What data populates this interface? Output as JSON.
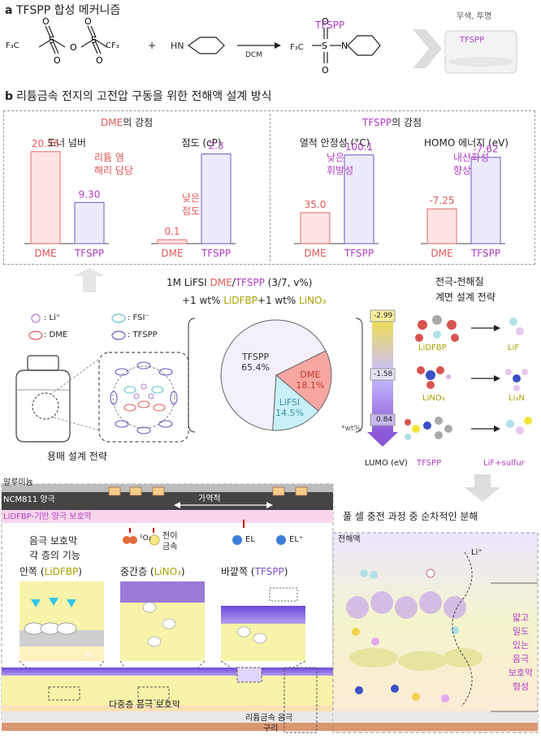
{
  "section_a": {
    "letter": "a",
    "title": "TFSPP 합성 메커니즘",
    "reactant1_F3C_left": "F₃C",
    "reactant1_CF3_right": "CF₃",
    "plus": "+",
    "amine": "HN",
    "solvent": "DCM",
    "product_label": "TFSPP",
    "product_F3C": "F₃C",
    "appearance": "무색, 투명",
    "vial_label": "TFSPP"
  },
  "section_b": {
    "letter": "b",
    "title": "리튬금속 전지의 고전압 구동을 위한 전해액 설계 방식",
    "dme_strength_title_a": "DME",
    "dme_strength_title_b": "의 강점",
    "tfspp_strength_title_a": "TFSPP",
    "tfspp_strength_title_b": "의 강점",
    "legend": {
      "li": ": Li⁺",
      "fsi": ": FSI⁻",
      "dme": ": DME",
      "tfspp": ": TFSPP"
    },
    "solvent_strategy": "용매 설계 전략",
    "formula_line1_a": "1M LiFSI ",
    "formula_line1_b": "DME",
    "formula_line1_c": "/",
    "formula_line1_d": "TFSPP",
    "formula_line1_e": " (3/7, v%)",
    "formula_line2_a": "+1 wt% ",
    "formula_line2_b": "LiDFBP",
    "formula_line2_c": "+1 wt% ",
    "formula_line2_d": "LiNO₃",
    "interface_title1": "전극-전해질",
    "interface_title2": "계면 설계 전략",
    "lumo_label": "LUMO (eV)",
    "lumo_values": [
      "-2.99",
      "-1.58",
      "0.84"
    ],
    "species": {
      "lidfbp": "LiDFBP",
      "lif": "LiF",
      "lino3": "LiNO₃",
      "li3n": "Li₃N",
      "tfspp": "TFSPP",
      "lif_sulfur": "LiF+sulfur"
    }
  },
  "chart_data": [
    {
      "type": "bar",
      "title": "도너 넘버",
      "categories": [
        "DME",
        "TFSPP"
      ],
      "values": [
        20.76,
        9.3
      ],
      "value_labels": [
        "20.76",
        "9.30"
      ],
      "annotation": [
        "리튬 염",
        "해리 담당"
      ],
      "ylim": [
        0,
        22
      ]
    },
    {
      "type": "bar",
      "title": "점도 (cP)",
      "categories": [
        "DME",
        "TFSPP"
      ],
      "values": [
        0.1,
        2.3
      ],
      "value_labels": [
        "0.1",
        "2.3"
      ],
      "annotation": [
        "낮은",
        "점도"
      ],
      "ylim": [
        0,
        2.5
      ]
    },
    {
      "type": "bar",
      "title": "열적 안정성 (°C)",
      "categories": [
        "DME",
        "TFSPP"
      ],
      "values": [
        35.0,
        100.1
      ],
      "value_labels": [
        "35.0",
        "100.1"
      ],
      "annotation": [
        "낮은",
        "휘발성"
      ],
      "ylim": [
        0,
        110
      ]
    },
    {
      "type": "bar",
      "title": "HOMO 에너지 (eV)",
      "categories": [
        "DME",
        "TFSPP"
      ],
      "values": [
        -7.25,
        -7.62
      ],
      "value_labels": [
        "-7.25",
        "-7.62"
      ],
      "annotation": [
        "내산화성",
        "향상"
      ],
      "ylim": [
        -7.0,
        -7.7
      ]
    },
    {
      "type": "pie",
      "labels": [
        "TFSPP",
        "DME",
        "LiFSI"
      ],
      "values": [
        65.4,
        18.1,
        14.5
      ],
      "value_labels": [
        "65.4%",
        "18.1%",
        "14.5%"
      ],
      "colors": [
        "#f3effb",
        "#f7a6a2",
        "#c8f0f8"
      ],
      "unit_note": "*wt%"
    }
  ],
  "section_c": {
    "aluminum": "알루미늄",
    "cathode": "NCM811 양극",
    "reversible": "가역적",
    "cathode_protect": "LiDFBP-기반 양극 보호막",
    "o2_label": "¹O₂",
    "tm_label1": "전이",
    "tm_label2": "금속",
    "el_label": "EL",
    "el_plus_label": "EL⁺",
    "anode_func1": "음극 보호막",
    "anode_func2": "각 층의 기능",
    "inner_a": "안쪽 (",
    "inner_b": "LiDFBP",
    "inner_c": ")",
    "middle_a": "중간층 (",
    "middle_b": "LiNO₃",
    "middle_c": ")",
    "outer_a": "바깥쪽 (",
    "outer_b": "TFSPP",
    "outer_c": ")",
    "electron": "e⁻",
    "multi_layer": "다중층 음극 보호막",
    "li_metal_anode": "리튬금속 음극",
    "copper": "구리",
    "full_cell_title": "풀 셀 충전 과정 중 순차적인 분해",
    "electrolyte": "전해액",
    "li_plus": "Li⁺",
    "thin_dense": [
      "얇고",
      "밀도",
      "있는",
      "음극",
      "보호막",
      "형성"
    ]
  }
}
